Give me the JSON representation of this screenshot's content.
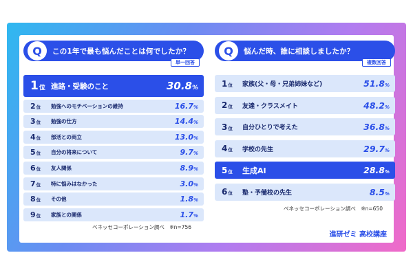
{
  "chart_data": [
    {
      "type": "table",
      "title": "この1年で最も悩んだことは何でしたか？",
      "badge": "単一回答",
      "rank_unit": "位",
      "items": [
        {
          "rank": "1",
          "label": "進路・受験のこと",
          "value": "30.8",
          "unit": "%"
        },
        {
          "rank": "2",
          "label": "勉強へのモチベーションの維持",
          "value": "16.7",
          "unit": "%"
        },
        {
          "rank": "3",
          "label": "勉強の仕方",
          "value": "14.4",
          "unit": "%"
        },
        {
          "rank": "4",
          "label": "部活との両立",
          "value": "13.0",
          "unit": "%"
        },
        {
          "rank": "5",
          "label": "自分の将来について",
          "value": "9.7",
          "unit": "%"
        },
        {
          "rank": "6",
          "label": "友人関係",
          "value": "8.9",
          "unit": "%"
        },
        {
          "rank": "7",
          "label": "特に悩みはなかった",
          "value": "3.0",
          "unit": "%"
        },
        {
          "rank": "8",
          "label": "その他",
          "value": "1.8",
          "unit": "%"
        },
        {
          "rank": "9",
          "label": "家族との関係",
          "value": "1.7",
          "unit": "%"
        }
      ],
      "source": "ベネッセコーポレーション調べ　※n=756"
    },
    {
      "type": "table",
      "title": "悩んだ時、誰に相談しましたか？",
      "badge": "複数回答",
      "rank_unit": "位",
      "items": [
        {
          "rank": "1",
          "label": "家族(父・母・兄弟姉妹など)",
          "value": "51.8",
          "unit": "%"
        },
        {
          "rank": "2",
          "label": "友達・クラスメイト",
          "value": "48.2",
          "unit": "%"
        },
        {
          "rank": "3",
          "label": "自分ひとりで考えた",
          "value": "36.8",
          "unit": "%"
        },
        {
          "rank": "4",
          "label": "学校の先生",
          "value": "29.7",
          "unit": "%"
        },
        {
          "rank": "5",
          "label": "生成AI",
          "value": "28.8",
          "unit": "%"
        },
        {
          "rank": "6",
          "label": "塾・予備校の先生",
          "value": "8.5",
          "unit": "%"
        }
      ],
      "source": "ベネッセコーポレーション調べ　※n=650"
    }
  ],
  "q_letter": "Q",
  "brand": "進研ゼミ 高校講座",
  "colors": {
    "accent": "#2b4fe8",
    "row_bg": "#dbe7fb"
  }
}
